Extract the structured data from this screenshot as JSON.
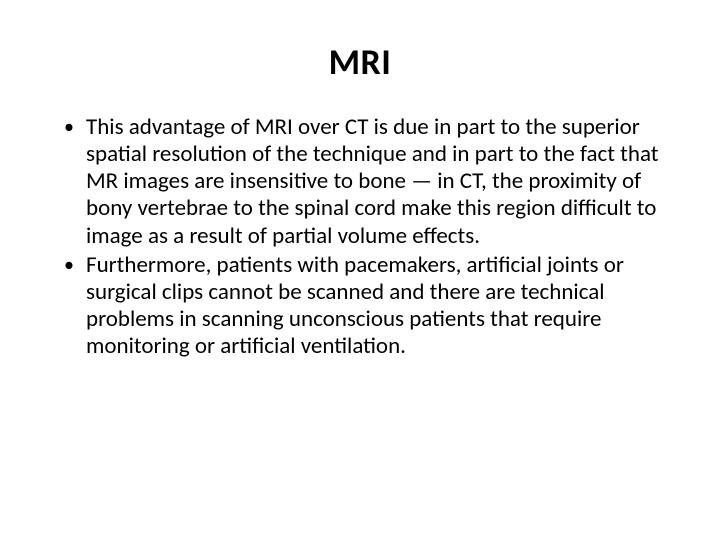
{
  "slide": {
    "title": "MRI",
    "bullets": [
      "This advantage of MRI over CT is due in part to the superior spatial resolution of the technique and in part to the fact that MR images are insensitive to bone — in CT, the proximity of bony vertebrae to the spinal cord make this region difficult to image as a result of partial volume effects.",
      "Furthermore, patients with pacemakers, artificial joints or surgical clips cannot be scanned and there are technical problems in scanning unconscious patients that require monitoring or artificial ventilation."
    ],
    "colors": {
      "background": "#ffffff",
      "text": "#000000"
    },
    "typography": {
      "title_fontsize": 36,
      "title_fontweight": 700,
      "body_fontsize": 23,
      "font_family": "Calibri"
    }
  }
}
